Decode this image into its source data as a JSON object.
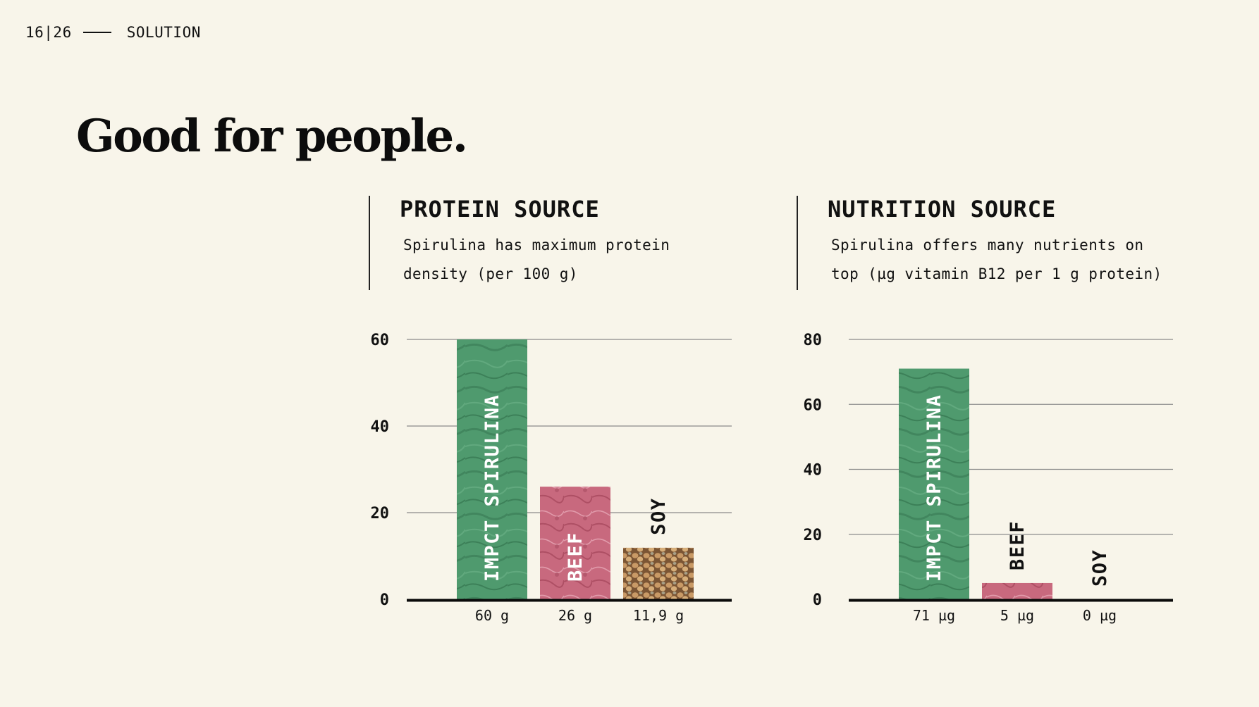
{
  "header": {
    "page": "16|26",
    "section": "SOLUTION"
  },
  "title": "Good for people.",
  "panels": [
    {
      "title": "PROTEIN SOURCE",
      "desc_line1": "Spirulina has maximum protein",
      "desc_line2": "density (per 100 g)"
    },
    {
      "title": "NUTRITION SOURCE",
      "desc_line1": "Spirulina offers many nutrients on",
      "desc_line2": "top (µg vitamin B12 per 1 g protein)"
    }
  ],
  "colors": {
    "background": "#f8f5ea",
    "spirulina": "#4f9a6e",
    "beef": "#c8697e",
    "soy": "#b5875a",
    "text": "#111111",
    "grid": "#8a8a8a"
  },
  "chart_data": [
    {
      "type": "bar",
      "categories": [
        "IMPCT SPIRULINA",
        "BEEF",
        "SOY"
      ],
      "values": [
        60,
        26,
        11.9
      ],
      "value_labels": [
        "60 g",
        "26 g",
        "11,9 g"
      ],
      "yticks": [
        0,
        20,
        40,
        60
      ],
      "ylim": [
        0,
        60
      ],
      "grid": true,
      "category_label_inside": [
        true,
        true,
        false
      ]
    },
    {
      "type": "bar",
      "categories": [
        "IMPCT SPIRULINA",
        "BEEF",
        "SOY"
      ],
      "values": [
        71,
        5,
        0
      ],
      "value_labels": [
        "71 µg",
        "5 µg",
        "0 µg"
      ],
      "yticks": [
        0,
        20,
        40,
        60,
        80
      ],
      "ylim": [
        0,
        80
      ],
      "grid": true,
      "category_label_inside": [
        true,
        false,
        false
      ]
    }
  ]
}
